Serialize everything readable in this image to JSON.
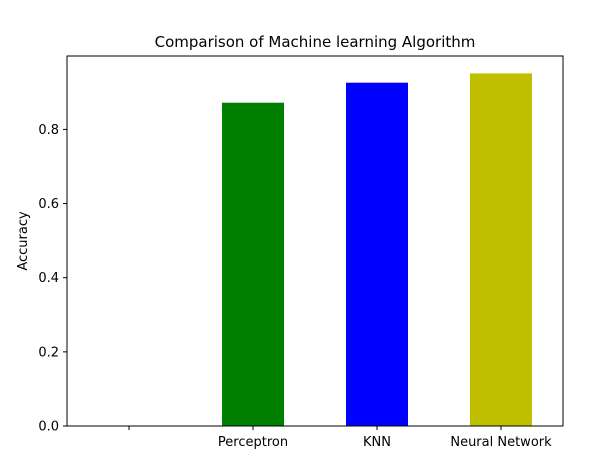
{
  "chart_data": {
    "type": "bar",
    "title": "Comparison of Machine learning Algorithm",
    "xlabel": "",
    "ylabel": "Accuracy",
    "categories": [
      "",
      "Perceptron",
      "KNN",
      "Neural Network"
    ],
    "values": [
      null,
      0.872,
      0.926,
      0.951
    ],
    "colors": [
      "",
      "#008000",
      "#0000ff",
      "#bfbf00"
    ],
    "ylim": [
      0,
      0.998
    ],
    "yticks": [
      0.0,
      0.2,
      0.4,
      0.6,
      0.8
    ],
    "ytick_labels": [
      "0.0",
      "0.2",
      "0.4",
      "0.6",
      "0.8"
    ],
    "grid": false,
    "legend": "none"
  }
}
